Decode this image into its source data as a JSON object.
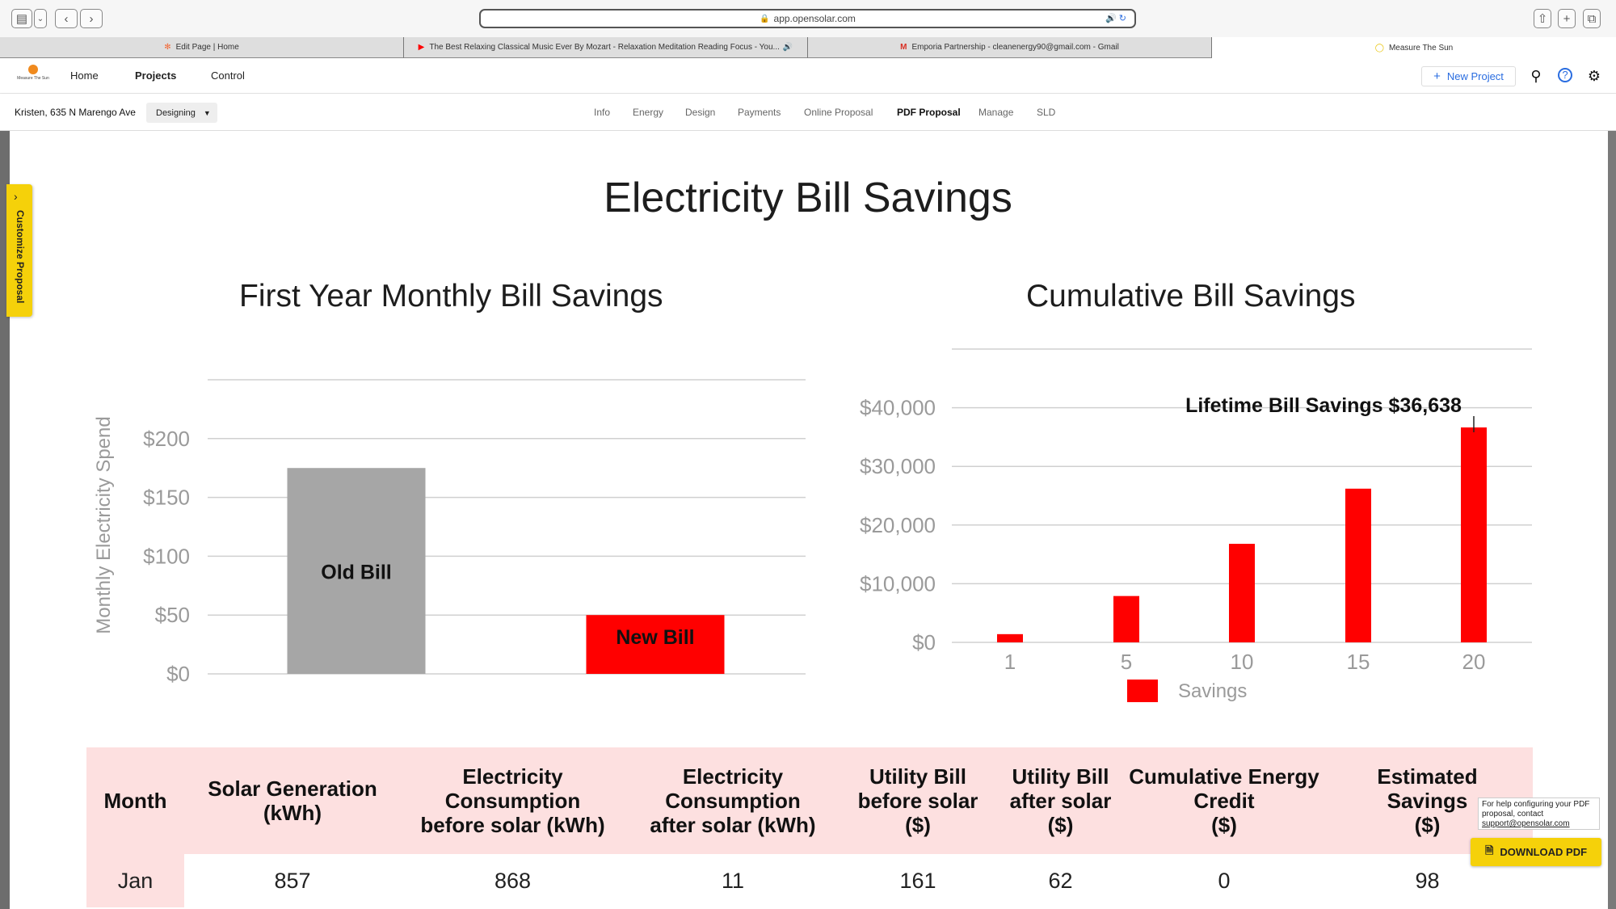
{
  "browser": {
    "url": "app.opensolar.com",
    "tabs": [
      {
        "label": "Edit Page | Home",
        "icon": "hubspot-icon"
      },
      {
        "label": "The Best Relaxing Classical Music Ever By Mozart - Relaxation Meditation Reading Focus - You...",
        "icon": "youtube-icon"
      },
      {
        "label": "Emporia Partnership - cleanenergy90@gmail.com - Gmail",
        "icon": "gmail-icon"
      },
      {
        "label": "Measure The Sun",
        "icon": "sun-icon"
      }
    ]
  },
  "header": {
    "logo_text": "Measure The Sun",
    "nav": [
      "Home",
      "Projects",
      "Control"
    ],
    "new_project_label": "New Project"
  },
  "project": {
    "name": "Kristen, 635 N Marengo Ave",
    "status": "Designing",
    "tabs": [
      "Info",
      "Energy",
      "Design",
      "Payments",
      "Online Proposal",
      "PDF Proposal",
      "Manage",
      "SLD"
    ],
    "active_tab": "PDF Proposal"
  },
  "sidebar": {
    "customize_label": "Customize Proposal"
  },
  "page_title": "Electricity Bill Savings",
  "chart_data": [
    {
      "type": "bar",
      "title": "First Year Monthly Bill Savings",
      "ylabel": "Monthly Electricity Spend",
      "xlabel": "",
      "categories": [
        "Old Bill",
        "New Bill"
      ],
      "values": [
        175,
        50
      ],
      "colors": [
        "#a6a6a6",
        "#ff0000"
      ],
      "ylim": [
        0,
        250
      ],
      "yticks": [
        "$0",
        "$50",
        "$100",
        "$150",
        "$200"
      ],
      "ytick_values": [
        0,
        50,
        100,
        150,
        200
      ]
    },
    {
      "type": "bar",
      "title": "Cumulative Bill Savings",
      "xlabel": "",
      "ylabel": "",
      "categories": [
        "1",
        "5",
        "10",
        "15",
        "20"
      ],
      "values": [
        1400,
        7900,
        16800,
        26200,
        36638
      ],
      "color": "#ff0000",
      "ylim": [
        0,
        50000
      ],
      "yticks": [
        "$0",
        "$10,000",
        "$20,000",
        "$30,000",
        "$40,000"
      ],
      "ytick_values": [
        0,
        10000,
        20000,
        30000,
        40000
      ],
      "legend": "Savings",
      "annotation": "Lifetime Bill Savings $36,638"
    }
  ],
  "table": {
    "headers": [
      [
        "Month"
      ],
      [
        "Solar Generation",
        "(kWh)"
      ],
      [
        "Electricity",
        "Consumption",
        "before solar (kWh)"
      ],
      [
        "Electricity",
        "Consumption",
        "after solar (kWh)"
      ],
      [
        "Utility Bill",
        "before solar",
        "($)"
      ],
      [
        "Utility Bill",
        "after solar",
        "($)"
      ],
      [
        "Cumulative Energy",
        "Credit",
        "($)"
      ],
      [
        "Estimated",
        "Savings",
        "($)"
      ]
    ],
    "rows": [
      [
        "Jan",
        "857",
        "868",
        "11",
        "161",
        "62",
        "0",
        "98"
      ]
    ]
  },
  "help": {
    "text": "For help configuring your PDF proposal, contact",
    "email": "support@opensolar.com"
  },
  "download_label": "DOWNLOAD PDF",
  "colors": {
    "accent_yellow": "#f5d10a",
    "bar_red": "#ff0000",
    "bar_gray": "#a6a6a6",
    "table_pink": "#fde0e0"
  }
}
